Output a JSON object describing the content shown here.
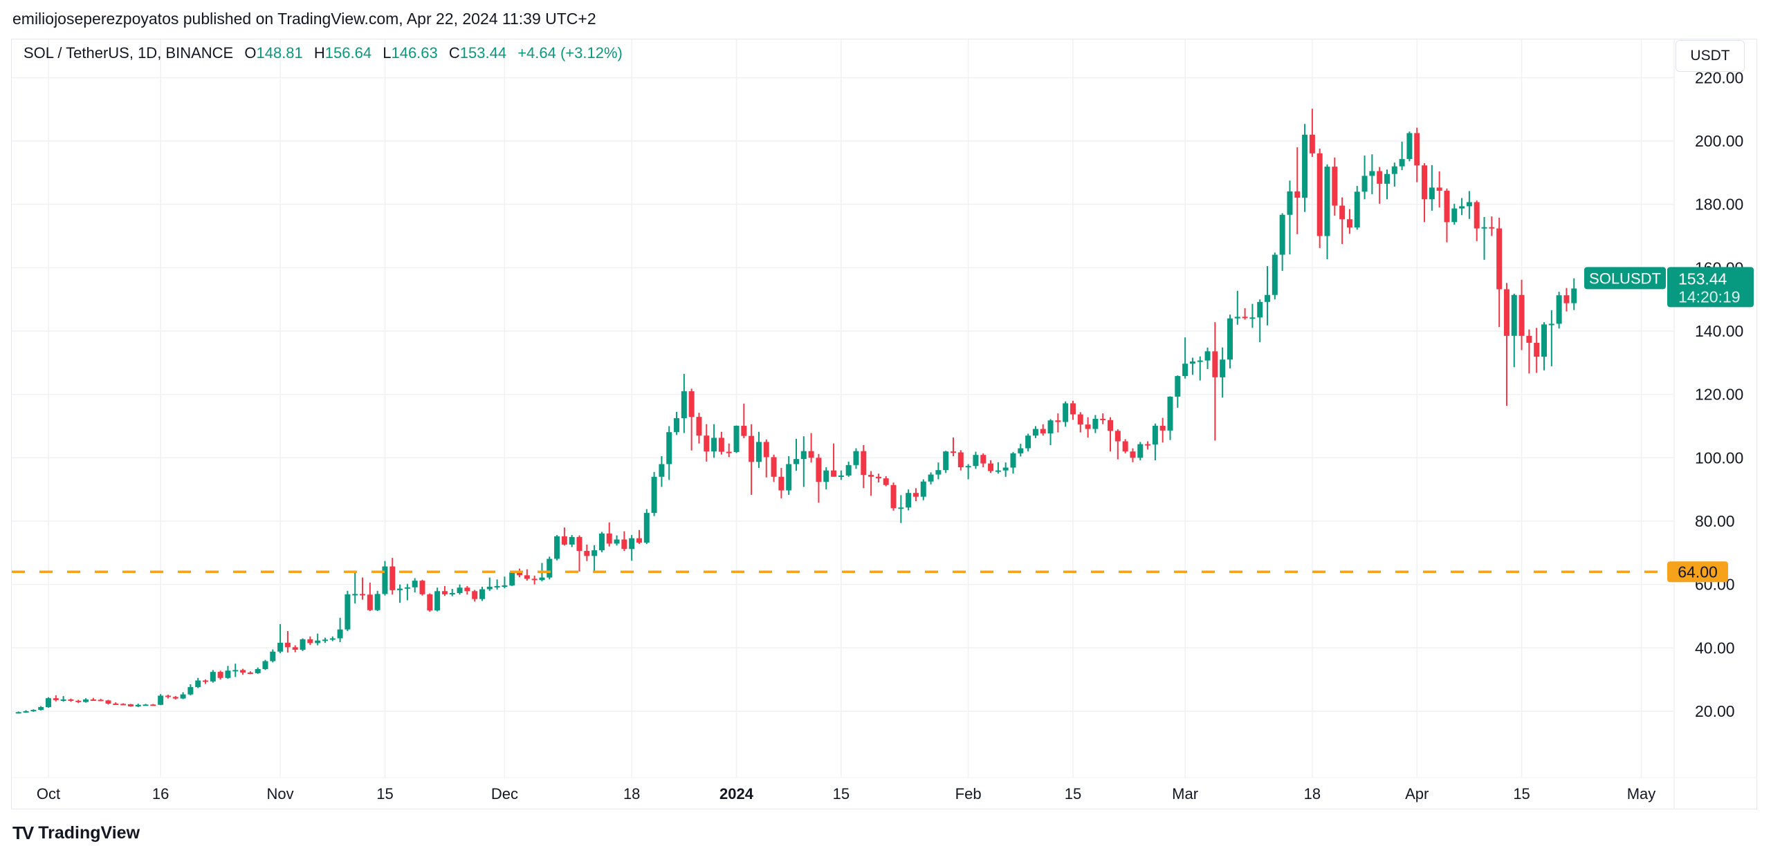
{
  "header": {
    "published": "emiliojoseperezpoyatos published on TradingView.com, Apr 22, 2024 11:39 UTC+2"
  },
  "legend": {
    "symbol": "SOL / TetherUS, 1D, BINANCE",
    "o_label": "O",
    "o": "148.81",
    "h_label": "H",
    "h": "156.64",
    "l_label": "L",
    "l": "146.63",
    "c_label": "C",
    "c": "153.44",
    "change": "+4.64 (+3.12%)"
  },
  "currency_button": "USDT",
  "price_tag": {
    "symbol": "SOLUSDT",
    "price": "153.44",
    "countdown": "14:20:19"
  },
  "level_line": {
    "value": 64,
    "label": "64.00"
  },
  "brand": "TradingView",
  "colors": {
    "up": "#089981",
    "down": "#f23645",
    "level": "#f7a21b",
    "grid": "#f0f1f3"
  },
  "chart_data": {
    "type": "candlestick",
    "title": "SOL / TetherUS, 1D, BINANCE",
    "start_date": "2023-09-27",
    "interval": "1D",
    "ylim": [
      0,
      225
    ],
    "yticks": [
      "20.00",
      "40.00",
      "60.00",
      "80.00",
      "100.00",
      "120.00",
      "140.00",
      "160.00",
      "180.00",
      "200.00",
      "220.00"
    ],
    "xticks": [
      {
        "date": "2023-10-01",
        "label": "Oct"
      },
      {
        "date": "2023-10-16",
        "label": "16"
      },
      {
        "date": "2023-11-01",
        "label": "Nov"
      },
      {
        "date": "2023-11-15",
        "label": "15"
      },
      {
        "date": "2023-12-01",
        "label": "Dec"
      },
      {
        "date": "2023-12-18",
        "label": "18"
      },
      {
        "date": "2024-01-01",
        "label": "2024",
        "bold": true
      },
      {
        "date": "2024-01-15",
        "label": "15"
      },
      {
        "date": "2024-02-01",
        "label": "Feb"
      },
      {
        "date": "2024-02-15",
        "label": "15"
      },
      {
        "date": "2024-03-01",
        "label": "Mar"
      },
      {
        "date": "2024-03-18",
        "label": "18"
      },
      {
        "date": "2024-04-01",
        "label": "Apr"
      },
      {
        "date": "2024-04-15",
        "label": "15"
      },
      {
        "date": "2024-05-01",
        "label": "May"
      }
    ],
    "ohlc": [
      [
        19.6,
        19.9,
        19.3,
        19.7
      ],
      [
        19.7,
        20.3,
        19.5,
        20.0
      ],
      [
        20.0,
        20.6,
        19.8,
        20.4
      ],
      [
        20.4,
        21.6,
        20.2,
        21.3
      ],
      [
        21.3,
        24.4,
        21.1,
        24.1
      ],
      [
        24.1,
        25.0,
        23.1,
        23.5
      ],
      [
        23.5,
        24.8,
        23.0,
        23.7
      ],
      [
        23.7,
        24.0,
        23.0,
        23.3
      ],
      [
        23.3,
        23.6,
        22.6,
        22.9
      ],
      [
        22.9,
        24.1,
        22.7,
        23.7
      ],
      [
        23.7,
        24.2,
        23.3,
        23.6
      ],
      [
        23.6,
        23.9,
        23.2,
        23.4
      ],
      [
        23.4,
        23.6,
        22.1,
        22.4
      ],
      [
        22.4,
        22.8,
        22.0,
        22.3
      ],
      [
        22.3,
        22.5,
        21.9,
        22.2
      ],
      [
        22.2,
        22.3,
        21.4,
        21.5
      ],
      [
        21.5,
        22.4,
        21.3,
        22.0
      ],
      [
        22.0,
        22.3,
        21.9,
        22.1
      ],
      [
        22.1,
        22.3,
        21.8,
        22.0
      ],
      [
        22.0,
        25.4,
        21.9,
        24.9
      ],
      [
        24.9,
        25.2,
        24.0,
        24.5
      ],
      [
        24.5,
        24.8,
        23.7,
        24.0
      ],
      [
        24.0,
        26.0,
        23.8,
        25.3
      ],
      [
        25.3,
        28.5,
        25.0,
        27.6
      ],
      [
        27.6,
        30.5,
        27.3,
        29.7
      ],
      [
        29.7,
        30.0,
        28.6,
        29.4
      ],
      [
        29.4,
        33.0,
        29.0,
        32.4
      ],
      [
        32.4,
        32.8,
        30.0,
        30.5
      ],
      [
        30.5,
        34.3,
        30.2,
        32.8
      ],
      [
        32.8,
        35.0,
        30.8,
        33.0
      ],
      [
        33.0,
        33.4,
        31.5,
        32.2
      ],
      [
        32.2,
        32.6,
        31.7,
        32.0
      ],
      [
        32.0,
        33.8,
        31.8,
        33.3
      ],
      [
        33.3,
        36.2,
        33.0,
        35.8
      ],
      [
        35.8,
        39.5,
        35.4,
        38.8
      ],
      [
        38.8,
        47.5,
        38.3,
        41.6
      ],
      [
        41.6,
        45.3,
        38.5,
        40.2
      ],
      [
        40.2,
        40.8,
        38.6,
        39.4
      ],
      [
        39.4,
        43.0,
        39.0,
        42.7
      ],
      [
        42.7,
        43.6,
        40.9,
        41.5
      ],
      [
        41.5,
        44.5,
        40.8,
        42.3
      ],
      [
        42.3,
        43.2,
        41.6,
        42.6
      ],
      [
        42.6,
        43.6,
        42.1,
        43.0
      ],
      [
        43.0,
        49.5,
        41.8,
        45.8
      ],
      [
        45.8,
        58.0,
        45.3,
        56.9
      ],
      [
        56.9,
        64.0,
        54.0,
        57.0
      ],
      [
        57.0,
        62.2,
        55.2,
        56.8
      ],
      [
        56.8,
        60.6,
        51.6,
        51.9
      ],
      [
        51.9,
        58.0,
        51.6,
        57.0
      ],
      [
        57.0,
        67.4,
        56.5,
        65.7
      ],
      [
        65.7,
        68.4,
        56.8,
        58.2
      ],
      [
        58.2,
        60.0,
        54.2,
        58.7
      ],
      [
        58.7,
        60.2,
        55.0,
        59.1
      ],
      [
        59.1,
        62.0,
        57.5,
        61.2
      ],
      [
        61.2,
        61.5,
        56.5,
        56.9
      ],
      [
        56.9,
        57.2,
        51.4,
        51.8
      ],
      [
        51.8,
        59.0,
        51.5,
        57.9
      ],
      [
        57.9,
        59.5,
        56.4,
        56.9
      ],
      [
        56.9,
        58.6,
        56.3,
        57.3
      ],
      [
        57.3,
        60.0,
        56.8,
        59.0
      ],
      [
        59.0,
        59.5,
        56.8,
        57.9
      ],
      [
        57.9,
        58.3,
        54.6,
        55.4
      ],
      [
        55.4,
        59.3,
        54.8,
        58.5
      ],
      [
        58.5,
        62.2,
        58.0,
        59.3
      ],
      [
        59.3,
        61.6,
        58.4,
        59.5
      ],
      [
        59.5,
        62.5,
        58.8,
        59.7
      ],
      [
        59.7,
        64.2,
        59.5,
        63.8
      ],
      [
        63.8,
        65.0,
        62.3,
        62.9
      ],
      [
        62.9,
        64.8,
        61.2,
        61.8
      ],
      [
        61.8,
        62.8,
        60.0,
        61.4
      ],
      [
        61.4,
        66.8,
        61.0,
        62.2
      ],
      [
        62.2,
        68.8,
        61.6,
        68.1
      ],
      [
        68.1,
        75.6,
        67.6,
        75.2
      ],
      [
        75.2,
        78.0,
        72.3,
        72.6
      ],
      [
        72.6,
        75.6,
        71.8,
        75.0
      ],
      [
        75.0,
        75.5,
        64.1,
        70.6
      ],
      [
        70.6,
        72.6,
        67.4,
        69.0
      ],
      [
        69.0,
        72.4,
        64.0,
        70.8
      ],
      [
        70.8,
        76.6,
        70.2,
        76.1
      ],
      [
        76.1,
        79.6,
        72.0,
        72.9
      ],
      [
        72.9,
        75.5,
        72.3,
        74.2
      ],
      [
        74.2,
        76.8,
        70.6,
        71.2
      ],
      [
        71.2,
        75.6,
        67.5,
        74.6
      ],
      [
        74.6,
        77.2,
        72.8,
        73.2
      ],
      [
        73.2,
        83.8,
        72.8,
        82.6
      ],
      [
        82.6,
        95.5,
        81.6,
        94.0
      ],
      [
        94.0,
        100.5,
        90.8,
        98.0
      ],
      [
        98.0,
        110.0,
        93.0,
        108.1
      ],
      [
        108.1,
        114.5,
        107.2,
        112.5
      ],
      [
        112.5,
        126.5,
        107.8,
        121.0
      ],
      [
        121.0,
        121.8,
        102.3,
        112.9
      ],
      [
        112.9,
        114.2,
        104.5,
        107.0
      ],
      [
        107.0,
        110.6,
        98.8,
        102.0
      ],
      [
        102.0,
        110.6,
        100.0,
        106.3
      ],
      [
        106.3,
        108.2,
        101.0,
        101.9
      ],
      [
        101.9,
        104.5,
        100.2,
        101.8
      ],
      [
        101.8,
        110.2,
        101.5,
        110.1
      ],
      [
        110.1,
        117.1,
        106.2,
        106.9
      ],
      [
        106.9,
        110.6,
        88.3,
        98.7
      ],
      [
        98.7,
        108.2,
        96.8,
        105.0
      ],
      [
        105.0,
        105.8,
        93.8,
        100.2
      ],
      [
        100.2,
        101.0,
        92.4,
        94.0
      ],
      [
        94.0,
        96.8,
        87.2,
        89.7
      ],
      [
        89.7,
        100.5,
        88.3,
        98.0
      ],
      [
        98.0,
        106.0,
        95.9,
        99.6
      ],
      [
        99.6,
        106.8,
        90.8,
        102.1
      ],
      [
        102.1,
        107.8,
        98.5,
        100.0
      ],
      [
        100.0,
        101.2,
        85.8,
        92.4
      ],
      [
        92.4,
        97.0,
        90.0,
        96.0
      ],
      [
        96.0,
        104.5,
        95.0,
        94.0
      ],
      [
        94.0,
        96.0,
        93.0,
        94.4
      ],
      [
        94.4,
        98.8,
        94.0,
        97.7
      ],
      [
        97.7,
        103.0,
        96.5,
        102.1
      ],
      [
        102.1,
        104.0,
        90.4,
        94.6
      ],
      [
        94.6,
        95.8,
        88.0,
        94.0
      ],
      [
        94.0,
        95.0,
        92.2,
        93.5
      ],
      [
        93.5,
        94.2,
        91.0,
        91.4
      ],
      [
        91.4,
        92.2,
        83.3,
        84.1
      ],
      [
        84.1,
        88.2,
        79.4,
        84.3
      ],
      [
        84.3,
        90.0,
        83.4,
        88.9
      ],
      [
        88.9,
        90.4,
        86.3,
        87.7
      ],
      [
        87.7,
        93.2,
        86.6,
        92.5
      ],
      [
        92.5,
        95.4,
        91.6,
        94.7
      ],
      [
        94.7,
        98.5,
        93.2,
        96.1
      ],
      [
        96.1,
        102.2,
        95.2,
        102.0
      ],
      [
        102.0,
        106.4,
        100.5,
        101.7
      ],
      [
        101.7,
        102.4,
        96.0,
        97.0
      ],
      [
        97.0,
        98.0,
        93.2,
        97.4
      ],
      [
        97.4,
        101.9,
        96.5,
        100.9
      ],
      [
        100.9,
        101.4,
        97.0,
        98.2
      ],
      [
        98.2,
        99.2,
        95.2,
        95.8
      ],
      [
        95.8,
        98.6,
        95.0,
        96.0
      ],
      [
        96.0,
        98.5,
        94.0,
        96.9
      ],
      [
        96.9,
        101.8,
        95.0,
        101.4
      ],
      [
        101.4,
        104.4,
        100.4,
        103.0
      ],
      [
        103.0,
        107.6,
        102.0,
        107.0
      ],
      [
        107.0,
        110.0,
        106.2,
        109.1
      ],
      [
        109.1,
        110.6,
        107.0,
        107.7
      ],
      [
        107.7,
        112.2,
        104.0,
        111.8
      ],
      [
        111.8,
        114.0,
        108.0,
        111.3
      ],
      [
        111.3,
        117.8,
        109.8,
        117.2
      ],
      [
        117.2,
        118.0,
        112.0,
        113.7
      ],
      [
        113.7,
        114.4,
        108.0,
        110.5
      ],
      [
        110.5,
        112.8,
        106.4,
        109.1
      ],
      [
        109.1,
        113.5,
        107.8,
        112.3
      ],
      [
        112.3,
        114.0,
        110.6,
        111.9
      ],
      [
        111.9,
        112.8,
        102.0,
        108.5
      ],
      [
        108.5,
        109.0,
        99.5,
        105.2
      ],
      [
        105.2,
        105.9,
        101.4,
        102.0
      ],
      [
        102.0,
        103.0,
        98.6,
        100.0
      ],
      [
        100.0,
        105.0,
        99.2,
        104.3
      ],
      [
        104.3,
        105.2,
        102.6,
        104.2
      ],
      [
        104.2,
        110.8,
        99.2,
        110.1
      ],
      [
        110.1,
        112.6,
        104.8,
        108.6
      ],
      [
        108.6,
        119.4,
        105.6,
        119.3
      ],
      [
        119.3,
        126.0,
        115.8,
        125.8
      ],
      [
        125.8,
        138.0,
        125.0,
        129.7
      ],
      [
        129.7,
        131.6,
        126.2,
        130.4
      ],
      [
        130.4,
        132.0,
        124.4,
        130.7
      ],
      [
        130.7,
        134.8,
        128.0,
        133.6
      ],
      [
        133.6,
        142.8,
        105.4,
        125.4
      ],
      [
        125.4,
        134.8,
        119.0,
        131.0
      ],
      [
        131.0,
        145.2,
        128.2,
        144.0
      ],
      [
        144.0,
        152.7,
        142.0,
        144.5
      ],
      [
        144.5,
        147.2,
        143.6,
        144.2
      ],
      [
        144.2,
        148.6,
        141.0,
        144.3
      ],
      [
        144.3,
        150.0,
        136.5,
        149.2
      ],
      [
        149.2,
        160.5,
        141.8,
        151.4
      ],
      [
        151.4,
        164.8,
        150.0,
        164.1
      ],
      [
        164.1,
        177.2,
        159.0,
        176.7
      ],
      [
        176.7,
        187.5,
        164.2,
        184.1
      ],
      [
        184.1,
        198.0,
        170.6,
        182.1
      ],
      [
        182.1,
        205.4,
        177.6,
        202.0
      ],
      [
        202.0,
        210.2,
        195.0,
        196.1
      ],
      [
        196.1,
        197.6,
        166.2,
        170.0
      ],
      [
        170.0,
        192.6,
        162.7,
        191.9
      ],
      [
        191.9,
        194.8,
        176.4,
        179.6
      ],
      [
        179.6,
        182.2,
        167.5,
        175.3
      ],
      [
        175.3,
        178.5,
        170.7,
        172.7
      ],
      [
        172.7,
        185.8,
        172.0,
        184.0
      ],
      [
        184.0,
        195.4,
        181.6,
        189.0
      ],
      [
        189.0,
        195.8,
        183.2,
        190.5
      ],
      [
        190.5,
        191.8,
        180.2,
        186.5
      ],
      [
        186.5,
        191.0,
        181.6,
        189.6
      ],
      [
        189.6,
        193.2,
        185.6,
        192.0
      ],
      [
        192.0,
        199.8,
        190.8,
        194.3
      ],
      [
        194.3,
        203.0,
        193.6,
        202.5
      ],
      [
        202.5,
        204.2,
        187.0,
        192.3
      ],
      [
        192.3,
        193.0,
        174.4,
        181.6
      ],
      [
        181.6,
        192.4,
        178.0,
        185.3
      ],
      [
        185.3,
        190.4,
        179.0,
        184.3
      ],
      [
        184.3,
        185.0,
        168.0,
        174.4
      ],
      [
        174.4,
        180.2,
        173.6,
        178.7
      ],
      [
        178.7,
        182.0,
        176.6,
        179.4
      ],
      [
        179.4,
        184.2,
        175.4,
        180.7
      ],
      [
        180.7,
        181.2,
        168.4,
        172.4
      ],
      [
        172.4,
        176.0,
        162.5,
        172.8
      ],
      [
        172.8,
        176.2,
        170.0,
        172.4
      ],
      [
        172.4,
        175.8,
        141.3,
        153.2
      ],
      [
        153.2,
        155.2,
        116.4,
        138.5
      ],
      [
        138.5,
        151.8,
        128.6,
        151.4
      ],
      [
        151.4,
        156.2,
        134.0,
        138.5
      ],
      [
        138.5,
        140.5,
        126.6,
        136.3
      ],
      [
        136.3,
        141.0,
        126.8,
        131.9
      ],
      [
        131.9,
        142.8,
        127.6,
        142.1
      ],
      [
        142.1,
        146.6,
        128.9,
        142.3
      ],
      [
        142.3,
        152.4,
        140.8,
        151.3
      ],
      [
        151.3,
        153.6,
        146.2,
        148.8
      ],
      [
        148.81,
        156.64,
        146.63,
        153.44
      ]
    ]
  }
}
